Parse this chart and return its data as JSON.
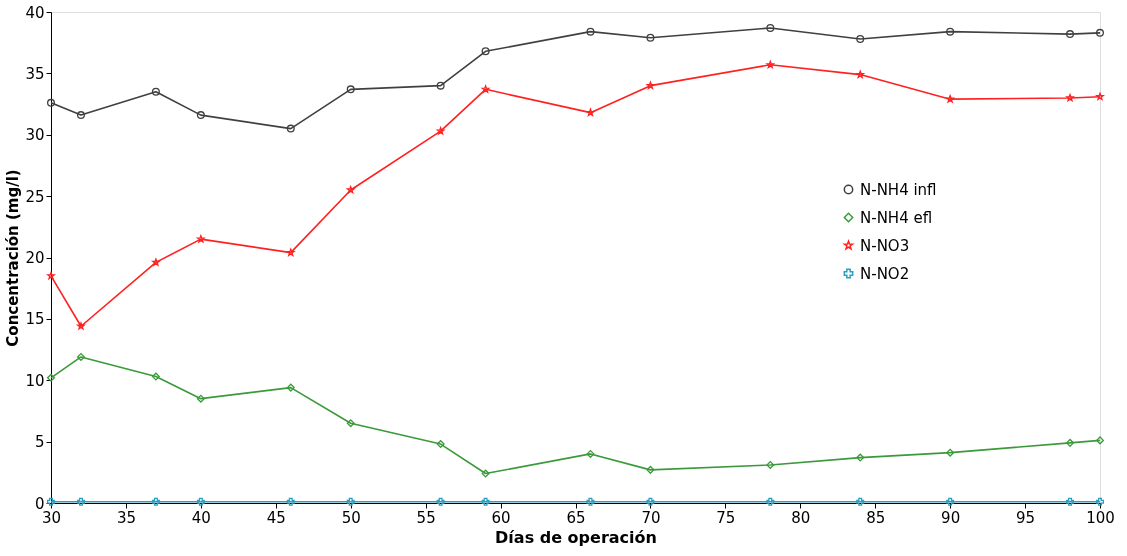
{
  "chart_data": {
    "type": "line",
    "xlabel": "Días de operación",
    "ylabel": "Concentración  (mg/l)",
    "x": [
      30,
      32,
      37,
      40,
      46,
      50,
      56,
      59,
      66,
      70,
      78,
      84,
      90,
      98,
      100
    ],
    "series": [
      {
        "name": "N-NH4 infl",
        "color": "#404040",
        "marker": "circle",
        "values": [
          32.6,
          31.6,
          33.5,
          31.6,
          30.5,
          33.7,
          34.0,
          36.8,
          38.4,
          37.9,
          38.7,
          37.8,
          38.4,
          38.2,
          38.3
        ]
      },
      {
        "name": "N-NH4 efl",
        "color": "#3a9a3a",
        "marker": "diamond",
        "values": [
          10.2,
          11.9,
          10.3,
          8.5,
          9.4,
          6.5,
          4.8,
          2.4,
          4.0,
          2.7,
          3.1,
          3.7,
          4.1,
          4.9,
          5.1
        ]
      },
      {
        "name": "N-NO3",
        "color": "#ff2020",
        "marker": "star",
        "values": [
          18.5,
          14.4,
          19.6,
          21.5,
          20.4,
          25.5,
          30.3,
          33.7,
          31.8,
          34.0,
          35.7,
          34.9,
          32.9,
          33.0,
          33.1
        ]
      },
      {
        "name": "N-NO2",
        "color": "#2aa0c0",
        "marker": "cross",
        "values": [
          0.1,
          0.1,
          0.1,
          0.1,
          0.1,
          0.1,
          0.1,
          0.1,
          0.1,
          0.1,
          0.1,
          0.1,
          0.1,
          0.1,
          0.1
        ]
      }
    ],
    "xlim": [
      30,
      100
    ],
    "xticks": [
      30,
      35,
      40,
      45,
      50,
      55,
      60,
      65,
      70,
      75,
      80,
      85,
      90,
      95,
      100
    ],
    "ylim": [
      0,
      40
    ],
    "yticks": [
      0,
      5,
      10,
      15,
      20,
      25,
      30,
      35,
      40
    ],
    "grid": false,
    "legend": "right",
    "line_style": "solid"
  }
}
